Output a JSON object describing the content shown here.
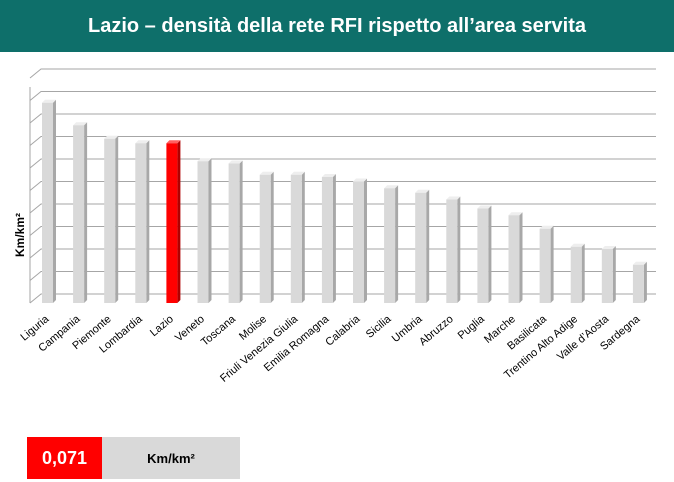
{
  "header": {
    "title": "Lazio – densità della rete RFI rispetto all’area servita"
  },
  "chart_data": {
    "type": "bar",
    "categories": [
      "Liguria",
      "Campania",
      "Piemonte",
      "Lombardia",
      "Lazio",
      "Veneto",
      "Toscana",
      "Molise",
      "Friuli Venezia Giulia",
      "Emilia Romagna",
      "Calabria",
      "Sicilia",
      "Umbria",
      "Abruzzo",
      "Puglia",
      "Marche",
      "Basilicata",
      "Trentino Alto Adige",
      "Valle d’Aosta",
      "Sardegna"
    ],
    "values": [
      0.089,
      0.079,
      0.073,
      0.071,
      0.071,
      0.063,
      0.062,
      0.057,
      0.057,
      0.056,
      0.054,
      0.051,
      0.049,
      0.046,
      0.042,
      0.039,
      0.033,
      0.025,
      0.024,
      0.017
    ],
    "highlight": "Lazio",
    "highlight_color": "#ff0000",
    "bar_color": "#d9d9d9",
    "ylabel": "Km/km²",
    "ylim": [
      0,
      0.1
    ],
    "grid": true
  },
  "value_box": {
    "value": "0,071",
    "unit": "Km/km²"
  }
}
